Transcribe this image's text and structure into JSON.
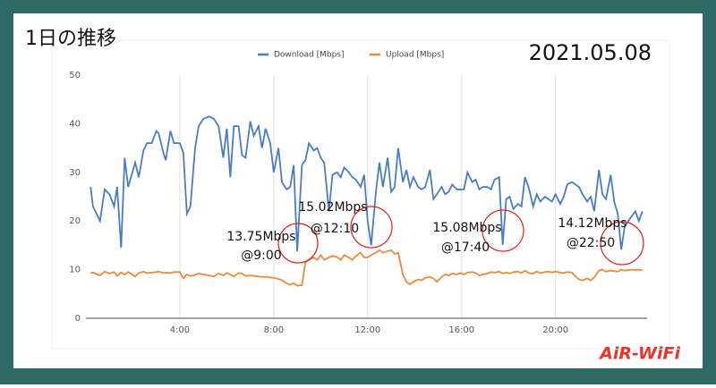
{
  "chart_data": {
    "type": "line",
    "title": "1日の推移",
    "subtitle": "2021.05.08",
    "brand": "AiR-WiFi",
    "xlim": [
      0,
      23.9
    ],
    "ylim": [
      0,
      50
    ],
    "yticks": [
      0,
      10,
      20,
      30,
      40,
      50
    ],
    "xticks": [
      {
        "value": 4,
        "label": "4:00"
      },
      {
        "value": 8,
        "label": "8:00"
      },
      {
        "value": 12,
        "label": "12:00"
      },
      {
        "value": 16,
        "label": "16:00"
      },
      {
        "value": 20,
        "label": "20:00"
      }
    ],
    "grid": true,
    "legend": "top",
    "x": [
      0.2,
      0.3,
      0.6,
      0.8,
      1.0,
      1.2,
      1.33,
      1.5,
      1.65,
      1.8,
      2.1,
      2.25,
      2.45,
      2.6,
      2.8,
      3.0,
      3.1,
      3.3,
      3.4,
      3.6,
      3.75,
      4.0,
      4.15,
      4.3,
      4.45,
      4.65,
      4.8,
      5.0,
      5.25,
      5.45,
      5.65,
      5.85,
      6.0,
      6.15,
      6.3,
      6.5,
      6.65,
      6.8,
      7.0,
      7.15,
      7.35,
      7.5,
      7.65,
      7.85,
      8.0,
      8.2,
      8.35,
      8.55,
      8.7,
      8.85,
      9.0,
      9.2,
      9.35,
      9.5,
      9.7,
      9.85,
      10.0,
      10.15,
      10.35,
      10.5,
      10.7,
      10.85,
      11.0,
      11.2,
      11.35,
      11.5,
      11.7,
      11.85,
      12.0,
      12.15,
      12.35,
      12.5,
      12.65,
      12.85,
      13.0,
      13.15,
      13.3,
      13.5,
      13.65,
      13.8,
      13.95,
      14.15,
      14.3,
      14.45,
      14.65,
      14.8,
      14.95,
      15.15,
      15.3,
      15.45,
      15.6,
      15.8,
      15.95,
      16.1,
      16.25,
      16.45,
      16.6,
      16.75,
      16.9,
      17.1,
      17.25,
      17.4,
      17.6,
      17.75,
      17.9,
      18.05,
      18.2,
      18.4,
      18.55,
      18.7,
      18.85,
      19.05,
      19.2,
      19.35,
      19.55,
      19.7,
      19.85,
      20.0,
      20.2,
      20.35,
      20.5,
      20.7,
      20.85,
      21.0,
      21.15,
      21.35,
      21.5,
      21.65,
      21.85,
      22.0,
      22.15,
      22.35,
      22.5,
      22.65,
      22.8,
      22.95,
      23.1,
      23.25,
      23.4,
      23.55,
      23.7
    ],
    "series": [
      {
        "name": "Download [Mbps]",
        "color": "#4a7cc4",
        "values": [
          27,
          23,
          20,
          26.5,
          25.5,
          23,
          27,
          14.5,
          33,
          27,
          32,
          29,
          34.5,
          36,
          36,
          38.5,
          38,
          34,
          32.5,
          38.5,
          36,
          36,
          34,
          21.5,
          23,
          35,
          39.5,
          41,
          41.5,
          41,
          39.5,
          33,
          39,
          29,
          39.5,
          39.5,
          33.5,
          33,
          40.5,
          37.5,
          39.5,
          35,
          39,
          36,
          30,
          35,
          28,
          26.5,
          27,
          31.5,
          13.75,
          31.5,
          32.5,
          36,
          34.5,
          35,
          33,
          32,
          22,
          29.5,
          30,
          29,
          31,
          30,
          29,
          28.5,
          27,
          29.5,
          20,
          15.02,
          26,
          32,
          27,
          33,
          26,
          27,
          35,
          28,
          30.5,
          27,
          29,
          27,
          26.5,
          27,
          30.5,
          24.5,
          25.5,
          27,
          25.5,
          26,
          27.5,
          26.5,
          26.5,
          26.5,
          30,
          28,
          28.5,
          26.5,
          27,
          27,
          26.5,
          28.5,
          29,
          15.08,
          24.5,
          25,
          22.5,
          23.5,
          23,
          29,
          27,
          23,
          25.5,
          24,
          25,
          24.5,
          24,
          25.5,
          23.5,
          25,
          27.5,
          28,
          27.5,
          27,
          25.5,
          24,
          25,
          22,
          30.5,
          25.5,
          24.5,
          29.5,
          24,
          21.5,
          14.12,
          19,
          20,
          21,
          22,
          20,
          22
        ]
      },
      {
        "name": "Upload [Mbps]",
        "color": "#ee8a3c",
        "values": [
          9.3,
          9.4,
          8.8,
          9.6,
          9.2,
          9.5,
          8.7,
          9.4,
          9.0,
          9.5,
          8.6,
          9.3,
          9.6,
          9.3,
          9.4,
          9.5,
          9.6,
          9.3,
          9.4,
          9.3,
          9.5,
          9.5,
          8.2,
          9.0,
          8.7,
          8.9,
          9.2,
          9.0,
          8.8,
          8.6,
          9.2,
          8.8,
          9.3,
          9.0,
          8.6,
          9.3,
          9.2,
          8.7,
          8.8,
          8.7,
          8.6,
          8.5,
          8.5,
          8.4,
          8.3,
          8.1,
          7.8,
          7.2,
          6.9,
          7.2,
          6.7,
          6.8,
          11.5,
          12.0,
          12.5,
          12.0,
          13.0,
          12.0,
          12.5,
          12.8,
          12.6,
          12.0,
          13.0,
          12.5,
          12.0,
          12.8,
          13.5,
          12.5,
          12.5,
          13.0,
          13.5,
          14.0,
          13.5,
          13.8,
          14.0,
          13.2,
          13.5,
          9.0,
          7.5,
          7.0,
          7.5,
          8.0,
          7.8,
          8.3,
          8.5,
          8.2,
          7.5,
          8.5,
          9.0,
          8.8,
          9.2,
          9.0,
          9.3,
          9.0,
          9.4,
          9.5,
          9.3,
          8.8,
          9.0,
          9.2,
          9.5,
          9.4,
          9.6,
          9.2,
          9.4,
          9.2,
          9.5,
          9.6,
          9.3,
          9.8,
          9.3,
          9.2,
          9.6,
          9.3,
          9.5,
          9.6,
          9.4,
          9.6,
          9.4,
          9.3,
          9.5,
          9.4,
          8.6,
          8.0,
          7.8,
          8.2,
          7.8,
          8.4,
          9.8,
          10.0,
          9.6,
          9.8,
          9.7,
          9.6,
          10.0,
          9.8,
          9.9,
          10.0,
          9.9,
          10.0,
          9.9
        ]
      }
    ],
    "annotations": [
      [
        "13.75Mbps",
        "@9:00"
      ],
      [
        "15.02Mbps",
        "@12:10"
      ],
      [
        "15.08Mbps",
        "@17:40"
      ],
      [
        "14.12Mbps",
        "@22:50"
      ]
    ]
  }
}
